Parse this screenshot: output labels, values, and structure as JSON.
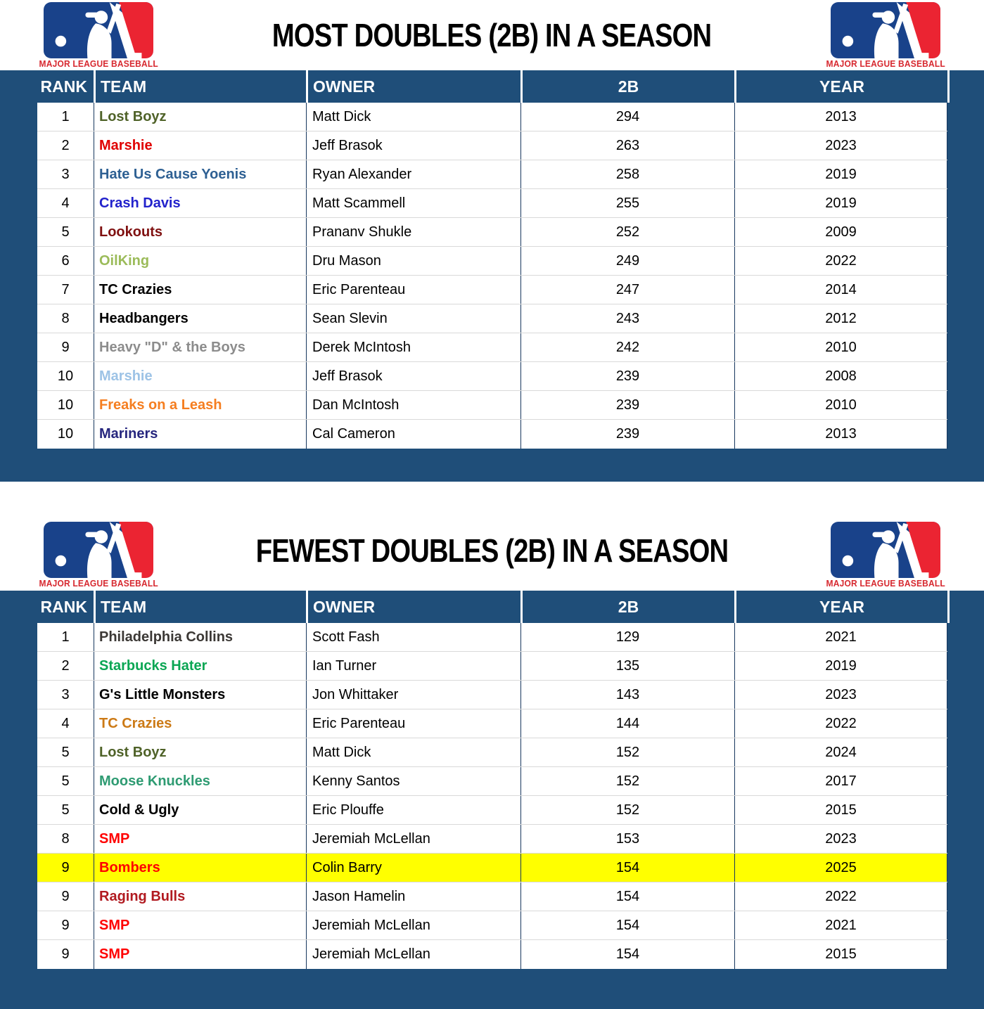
{
  "brand": {
    "caption": "MAJOR LEAGUE BASEBALL"
  },
  "theme": {
    "page_bg": "#1F4E79",
    "header_bg": "#1F4E79",
    "body_divider": "#17375E",
    "row_divider": "#D9D9D9",
    "highlight": "#FFFF00",
    "caption_red": "#D7282F",
    "logo_blue": "#19428A",
    "logo_red": "#EB2432"
  },
  "chart_data": [
    {
      "type": "table",
      "title": "MOST DOUBLES (2B) IN A SEASON",
      "columns": [
        "RANK",
        "TEAM",
        "OWNER",
        "2B",
        "YEAR"
      ],
      "rows": [
        {
          "rank": "1",
          "team": "Lost Boyz",
          "team_color": "#4F6228",
          "owner": "Matt Dick",
          "doubles": "294",
          "year": "2013",
          "highlight": false
        },
        {
          "rank": "2",
          "team": "Marshie",
          "team_color": "#E00000",
          "owner": "Jeff Brasok",
          "doubles": "263",
          "year": "2023",
          "highlight": false
        },
        {
          "rank": "3",
          "team": "Hate Us Cause Yoenis",
          "team_color": "#2E6093",
          "owner": "Ryan Alexander",
          "doubles": "258",
          "year": "2019",
          "highlight": false
        },
        {
          "rank": "4",
          "team": "Crash Davis",
          "team_color": "#2222CC",
          "owner": "Matt Scammell",
          "doubles": "255",
          "year": "2019",
          "highlight": false
        },
        {
          "rank": "5",
          "team": "Lookouts",
          "team_color": "#7F1010",
          "owner": "Prananv Shukle",
          "doubles": "252",
          "year": "2009",
          "highlight": false
        },
        {
          "rank": "6",
          "team": "OilKing",
          "team_color": "#9BBB59",
          "owner": "Dru Mason",
          "doubles": "249",
          "year": "2022",
          "highlight": false
        },
        {
          "rank": "7",
          "team": "TC Crazies",
          "team_color": "#000000",
          "owner": "Eric Parenteau",
          "doubles": "247",
          "year": "2014",
          "highlight": false
        },
        {
          "rank": "8",
          "team": "Headbangers",
          "team_color": "#000000",
          "owner": "Sean Slevin",
          "doubles": "243",
          "year": "2012",
          "highlight": false
        },
        {
          "rank": "9",
          "team": "Heavy \"D\" & the Boys",
          "team_color": "#8C8C8C",
          "owner": "Derek McIntosh",
          "doubles": "242",
          "year": "2010",
          "highlight": false
        },
        {
          "rank": "10",
          "team": "Marshie",
          "team_color": "#9DC3E6",
          "owner": "Jeff Brasok",
          "doubles": "239",
          "year": "2008",
          "highlight": false
        },
        {
          "rank": "10",
          "team": "Freaks on a Leash",
          "team_color": "#F57E20",
          "owner": "Dan McIntosh",
          "doubles": "239",
          "year": "2010",
          "highlight": false
        },
        {
          "rank": "10",
          "team": "Mariners",
          "team_color": "#26267E",
          "owner": "Cal Cameron",
          "doubles": "239",
          "year": "2013",
          "highlight": false
        }
      ]
    },
    {
      "type": "table",
      "title": "FEWEST DOUBLES (2B) IN A SEASON",
      "columns": [
        "RANK",
        "TEAM",
        "OWNER",
        "2B",
        "YEAR"
      ],
      "rows": [
        {
          "rank": "1",
          "team": "Philadelphia Collins",
          "team_color": "#3B3835",
          "owner": "Scott Fash",
          "doubles": "129",
          "year": "2021",
          "highlight": false
        },
        {
          "rank": "2",
          "team": "Starbucks Hater",
          "team_color": "#0AA653",
          "owner": "Ian Turner",
          "doubles": "135",
          "year": "2019",
          "highlight": false
        },
        {
          "rank": "3",
          "team": "G's Little Monsters",
          "team_color": "#000000",
          "owner": "Jon Whittaker",
          "doubles": "143",
          "year": "2023",
          "highlight": false
        },
        {
          "rank": "4",
          "team": "TC Crazies",
          "team_color": "#CC7A16",
          "owner": "Eric Parenteau",
          "doubles": "144",
          "year": "2022",
          "highlight": false
        },
        {
          "rank": "5",
          "team": "Lost Boyz",
          "team_color": "#4F6228",
          "owner": "Matt Dick",
          "doubles": "152",
          "year": "2024",
          "highlight": false
        },
        {
          "rank": "5",
          "team": "Moose Knuckles",
          "team_color": "#2E9B72",
          "owner": "Kenny Santos",
          "doubles": "152",
          "year": "2017",
          "highlight": false
        },
        {
          "rank": "5",
          "team": "Cold & Ugly",
          "team_color": "#000000",
          "owner": "Eric Plouffe",
          "doubles": "152",
          "year": "2015",
          "highlight": false
        },
        {
          "rank": "8",
          "team": "SMP",
          "team_color": "#FF0000",
          "owner": "Jeremiah McLellan",
          "doubles": "153",
          "year": "2023",
          "highlight": false
        },
        {
          "rank": "9",
          "team": "Bombers",
          "team_color": "#FF0000",
          "owner": "Colin Barry",
          "doubles": "154",
          "year": "2025",
          "highlight": true
        },
        {
          "rank": "9",
          "team": "Raging Bulls",
          "team_color": "#B11A20",
          "owner": "Jason Hamelin",
          "doubles": "154",
          "year": "2022",
          "highlight": false
        },
        {
          "rank": "9",
          "team": "SMP",
          "team_color": "#FF0000",
          "owner": "Jeremiah McLellan",
          "doubles": "154",
          "year": "2021",
          "highlight": false
        },
        {
          "rank": "9",
          "team": "SMP",
          "team_color": "#FF0000",
          "owner": "Jeremiah McLellan",
          "doubles": "154",
          "year": "2015",
          "highlight": false
        }
      ]
    }
  ]
}
